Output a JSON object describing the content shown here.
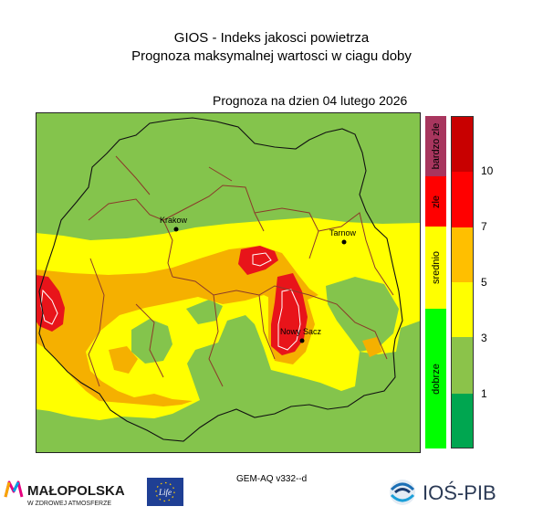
{
  "header": {
    "title": "GIOS - Indeks jakosci powietrza",
    "subtitle": "Prognoza maksymalnej wartosci w ciagu doby",
    "date_line": "Prognoza na dzien  04 lutego 2026"
  },
  "map": {
    "cities": [
      {
        "name": "Krakow"
      },
      {
        "name": "Tarnow"
      },
      {
        "name": "Nowy Sacz"
      }
    ],
    "colors": {
      "green": "#84c44c",
      "yellow": "#ffff00",
      "orange": "#f5b000",
      "red": "#e8141a",
      "frame": "#222222"
    }
  },
  "legend": {
    "categories": [
      {
        "label": "bardzo zle",
        "color": "#a8365e"
      },
      {
        "label": "zle",
        "color": "#ff0000"
      },
      {
        "label": "srednio",
        "color": "#ffff00"
      },
      {
        "label": "dobrze",
        "color": "#00ff00"
      }
    ],
    "scale_colors": [
      "#c80000",
      "#ff0000",
      "#ffbf00",
      "#ffff00",
      "#8bc34a",
      "#00a650"
    ],
    "ticks": [
      "10",
      "7",
      "5",
      "3",
      "1"
    ]
  },
  "footer": {
    "model": "GEM-AQ v332--d",
    "malopolska_name": "MAŁOPOLSKA",
    "malopolska_tagline": "W ZDROWEJ ATMOSFERZE",
    "eu_label": "Life",
    "ios_name": "IOŚ-PIB"
  }
}
